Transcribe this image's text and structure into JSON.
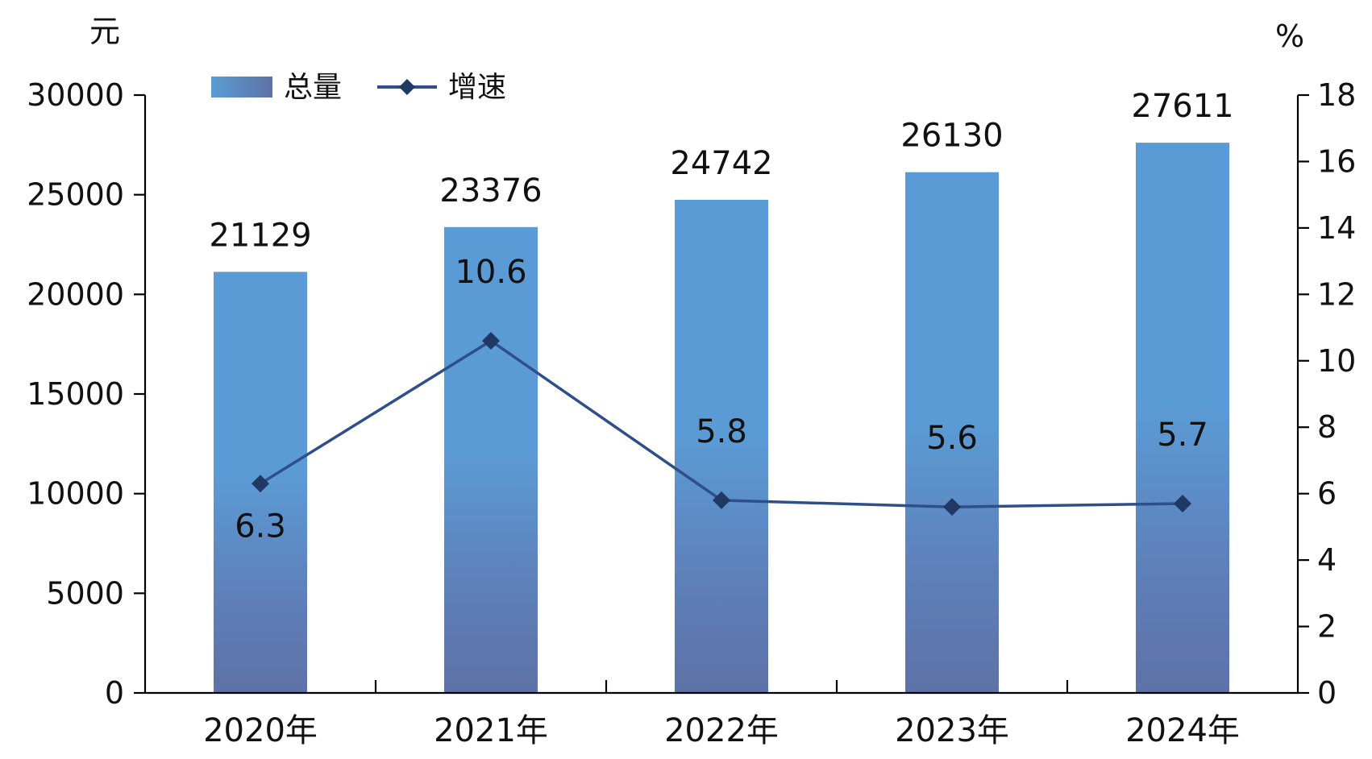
{
  "chart_data": {
    "type": "bar",
    "categories": [
      "2020年",
      "2021年",
      "2022年",
      "2023年",
      "2024年"
    ],
    "series": [
      {
        "name": "总量",
        "type": "bar",
        "axis": "left",
        "values": [
          21129,
          23376,
          24742,
          26130,
          27611
        ],
        "data_labels": [
          "21129",
          "23376",
          "24742",
          "26130",
          "27611"
        ]
      },
      {
        "name": "增速",
        "type": "line",
        "axis": "right",
        "values": [
          6.3,
          10.6,
          5.8,
          5.6,
          5.7
        ],
        "data_labels": [
          "6.3",
          "10.6",
          "5.8",
          "5.6",
          "5.7"
        ]
      }
    ],
    "left_axis": {
      "unit": "元",
      "ylim": [
        0,
        30000
      ],
      "ticks": [
        0,
        5000,
        10000,
        15000,
        20000,
        25000,
        30000
      ],
      "tick_labels": [
        "0",
        "5000",
        "10000",
        "15000",
        "20000",
        "25000",
        "30000"
      ]
    },
    "right_axis": {
      "unit": "%",
      "ylim": [
        0,
        18
      ],
      "ticks": [
        0,
        2,
        4,
        6,
        8,
        10,
        12,
        14,
        16,
        18
      ],
      "tick_labels": [
        "0",
        "2",
        "4",
        "6",
        "8",
        "10",
        "12",
        "14",
        "16",
        "18"
      ]
    },
    "legend": {
      "position": "top-left",
      "entries": [
        "总量",
        "增速"
      ]
    },
    "grid": false,
    "colors": {
      "bar_top": "#5b9bd5",
      "bar_bottom": "#5e75a8",
      "line": "#2f4f8a",
      "marker": "#1f3864"
    }
  }
}
